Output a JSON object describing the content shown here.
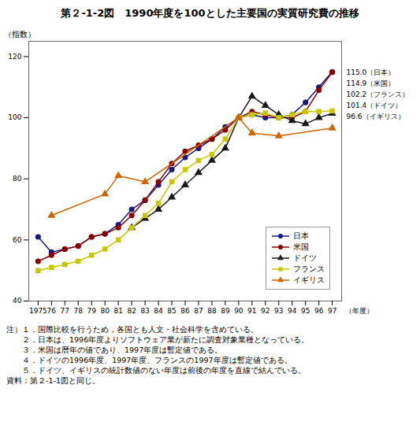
{
  "chart_data": {
    "type": "line",
    "title": "第２-1-2図　1990年度を100とした主要国の実質研究費の推移",
    "ylabel": "（指数）",
    "xlabel": "（年度）",
    "x": [
      1975,
      1976,
      1977,
      1978,
      1979,
      1980,
      1981,
      1982,
      1983,
      1984,
      1985,
      1986,
      1987,
      1988,
      1989,
      1990,
      1991,
      1992,
      1993,
      1994,
      1995,
      1996,
      1997
    ],
    "xlim": [
      1974.3,
      1997.7
    ],
    "xticks": [
      1975,
      {
        "value": 1976,
        "label": "76"
      },
      {
        "value": 1977,
        "label": "77"
      },
      {
        "value": 1978,
        "label": "78"
      },
      {
        "value": 1979,
        "label": "79"
      },
      {
        "value": 1980,
        "label": "80"
      },
      {
        "value": 1981,
        "label": "81"
      },
      {
        "value": 1982,
        "label": "82"
      },
      {
        "value": 1983,
        "label": "83"
      },
      {
        "value": 1984,
        "label": "84"
      },
      {
        "value": 1985,
        "label": "85"
      },
      {
        "value": 1986,
        "label": "86"
      },
      {
        "value": 1987,
        "label": "87"
      },
      {
        "value": 1988,
        "label": "88"
      },
      {
        "value": 1989,
        "label": "89"
      },
      {
        "value": 1990,
        "label": "90"
      },
      {
        "value": 1991,
        "label": "91"
      },
      {
        "value": 1992,
        "label": "92"
      },
      {
        "value": 1993,
        "label": "93"
      },
      {
        "value": 1994,
        "label": "94"
      },
      {
        "value": 1995,
        "label": "95"
      },
      {
        "value": 1996,
        "label": "96"
      },
      {
        "value": 1997,
        "label": "97"
      }
    ],
    "ylim": [
      40,
      125
    ],
    "yticks": [
      40,
      60,
      80,
      100,
      120
    ],
    "grid": false,
    "legend": "lower right",
    "series": [
      {
        "name": "日本",
        "color": "#1a1a7a",
        "marker": "circle",
        "values": [
          61.0,
          56.0,
          57.0,
          58.0,
          61.0,
          62.0,
          65.0,
          70.0,
          73.0,
          78.0,
          83.0,
          87.0,
          90.0,
          93.0,
          97.0,
          100.0,
          101.0,
          100.0,
          100.0,
          101.0,
          105.0,
          110.0,
          115.0
        ]
      },
      {
        "name": "米国",
        "color": "#8b0000",
        "marker": "circle",
        "values": [
          53.0,
          55.0,
          57.0,
          58.0,
          61.0,
          62.0,
          64.0,
          68.0,
          73.0,
          79.0,
          85.0,
          89.0,
          91.0,
          93.0,
          96.0,
          100.0,
          102.0,
          101.0,
          100.0,
          100.0,
          102.0,
          109.0,
          114.9
        ]
      },
      {
        "name": "ドイツ",
        "color": "#1a1a1a",
        "marker": "triangle",
        "values": [
          null,
          null,
          null,
          null,
          null,
          null,
          null,
          64.0,
          67.0,
          70.0,
          74.0,
          78.0,
          82.0,
          86.0,
          90.0,
          100.0,
          107.0,
          104.0,
          101.0,
          99.0,
          98.0,
          100.0,
          101.4
        ]
      },
      {
        "name": "フランス",
        "color": "#c8c800",
        "marker": "square",
        "values": [
          50.0,
          51.0,
          52.0,
          53.0,
          55.0,
          57.0,
          60.0,
          64.0,
          68.0,
          72.0,
          79.0,
          83.0,
          86.0,
          88.0,
          93.0,
          100.0,
          101.0,
          101.5,
          100.0,
          101.0,
          102.0,
          102.0,
          102.2
        ]
      },
      {
        "name": "イギリス",
        "color": "#cc6600",
        "marker": "triangle",
        "values": [
          null,
          68.0,
          null,
          null,
          null,
          75.0,
          81.0,
          null,
          79.0,
          null,
          null,
          null,
          null,
          null,
          null,
          100.0,
          95.0,
          null,
          94.0,
          null,
          null,
          null,
          96.6
        ]
      }
    ],
    "annotations": [
      "115.0（日本）",
      "114.9（米国）",
      "102.2（フランス）",
      "101.4（ドイツ）",
      "96.6（イギリス）"
    ],
    "notes": [
      "注）１．国際比較を行うため，各国とも人文・社会科学を含めている。",
      "　　２．日本は、1996年度よりソフトウェア業が新たに調査対象業種となっている。",
      "　　３．米国は暦年の値であり、1997年度は暫定値である。",
      "　　４．ドイツの1996年度、1997年度、フランスの1997年度は暫定値である。",
      "　　５．ドイツ、イギリスの統計数値のない年度は前後の年度を直線で結んでいる。",
      "資料：第２-1-1図と同じ。"
    ]
  }
}
